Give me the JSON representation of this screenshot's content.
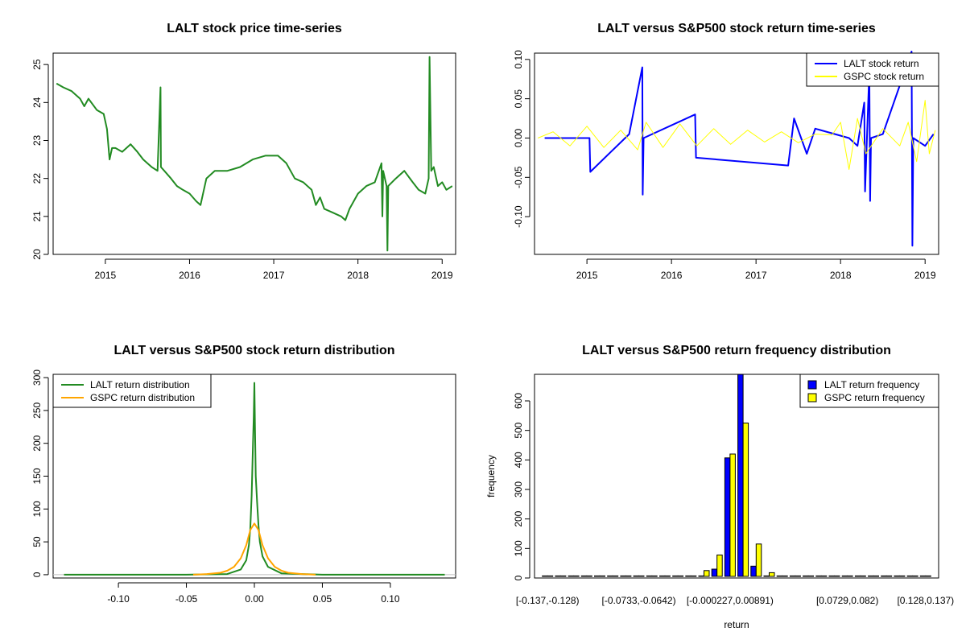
{
  "chart_data": [
    {
      "id": "price",
      "type": "line",
      "title": "LALT stock price time-series",
      "xlabel": "",
      "ylabel": "",
      "xlim": [
        2014.38,
        2019.16
      ],
      "ylim": [
        20.0,
        25.3
      ],
      "x_ticks": [
        2015,
        2016,
        2017,
        2018,
        2019
      ],
      "x_tick_labels": [
        "2015",
        "2016",
        "2017",
        "2018",
        "2019"
      ],
      "y_ticks": [
        20,
        21,
        22,
        23,
        24,
        25
      ],
      "y_tick_labels": [
        "20",
        "21",
        "22",
        "23",
        "24",
        "25"
      ],
      "series": [
        {
          "color": "#228B22",
          "x": [
            2014.42,
            2014.5,
            2014.6,
            2014.7,
            2014.75,
            2014.8,
            2014.9,
            2014.98,
            2015.02,
            2015.05,
            2015.08,
            2015.12,
            2015.2,
            2015.3,
            2015.38,
            2015.45,
            2015.55,
            2015.62,
            2015.655,
            2015.66,
            2015.7,
            2015.78,
            2015.85,
            2015.92,
            2016.0,
            2016.08,
            2016.13,
            2016.2,
            2016.3,
            2016.45,
            2016.6,
            2016.75,
            2016.9,
            2017.05,
            2017.15,
            2017.25,
            2017.35,
            2017.45,
            2017.5,
            2017.55,
            2017.6,
            2017.7,
            2017.8,
            2017.85,
            2017.9,
            2018.0,
            2018.1,
            2018.2,
            2018.28,
            2018.29,
            2018.3,
            2018.34,
            2018.35,
            2018.36,
            2018.45,
            2018.55,
            2018.65,
            2018.72,
            2018.8,
            2018.84,
            2018.85,
            2018.87,
            2018.9,
            2018.95,
            2019.0,
            2019.05,
            2019.12
          ],
          "y": [
            24.5,
            24.4,
            24.3,
            24.1,
            23.9,
            24.1,
            23.8,
            23.7,
            23.3,
            22.5,
            22.8,
            22.8,
            22.7,
            22.9,
            22.7,
            22.5,
            22.3,
            22.2,
            24.4,
            22.3,
            22.2,
            22.0,
            21.8,
            21.7,
            21.6,
            21.4,
            21.3,
            22.0,
            22.2,
            22.2,
            22.3,
            22.5,
            22.6,
            22.6,
            22.4,
            22.0,
            21.9,
            21.7,
            21.3,
            21.5,
            21.2,
            21.1,
            21.0,
            20.9,
            21.2,
            21.6,
            21.8,
            21.9,
            22.4,
            21.0,
            22.2,
            21.8,
            20.1,
            21.8,
            22.0,
            22.2,
            21.9,
            21.7,
            21.6,
            22.0,
            25.2,
            22.2,
            22.3,
            21.8,
            21.9,
            21.7,
            21.8
          ]
        }
      ]
    },
    {
      "id": "returns",
      "type": "line",
      "title": "LALT versus S&P500 stock return time-series",
      "xlabel": "",
      "ylabel": "",
      "xlim": [
        2014.38,
        2019.16
      ],
      "ylim": [
        -0.148,
        0.108
      ],
      "x_ticks": [
        2015,
        2016,
        2017,
        2018,
        2019
      ],
      "x_tick_labels": [
        "2015",
        "2016",
        "2017",
        "2018",
        "2019"
      ],
      "y_ticks": [
        -0.1,
        -0.05,
        0.0,
        0.05,
        0.1
      ],
      "y_tick_labels": [
        "-0.10",
        "-0.05",
        "0.00",
        "0.05",
        "0.10"
      ],
      "legend": {
        "position": "top-right"
      },
      "series": [
        {
          "name": "LALT stock return",
          "color": "#0000FF",
          "x": [
            2014.5,
            2015.03,
            2015.04,
            2015.5,
            2015.655,
            2015.66,
            2015.67,
            2016.28,
            2016.29,
            2017.38,
            2017.45,
            2017.6,
            2017.7,
            2018.1,
            2018.2,
            2018.28,
            2018.29,
            2018.34,
            2018.35,
            2018.36,
            2018.5,
            2018.84,
            2018.85,
            2018.86,
            2019.0,
            2019.1
          ],
          "y": [
            0.0,
            0.0,
            -0.043,
            0.005,
            0.09,
            -0.072,
            0.0,
            0.03,
            -0.025,
            -0.035,
            0.025,
            -0.02,
            0.012,
            0.0,
            -0.01,
            0.045,
            -0.068,
            0.085,
            -0.08,
            0.0,
            0.005,
            0.11,
            -0.137,
            0.0,
            -0.01,
            0.005
          ]
        },
        {
          "name": "GSPC stock return",
          "color": "#FFFF00",
          "x": [
            2014.42,
            2014.6,
            2014.8,
            2015.0,
            2015.2,
            2015.4,
            2015.6,
            2015.7,
            2015.9,
            2016.1,
            2016.3,
            2016.5,
            2016.7,
            2016.9,
            2017.1,
            2017.3,
            2017.5,
            2017.7,
            2017.9,
            2018.0,
            2018.1,
            2018.2,
            2018.3,
            2018.5,
            2018.7,
            2018.8,
            2018.9,
            2019.0,
            2019.05,
            2019.12
          ],
          "y": [
            0.0,
            0.008,
            -0.01,
            0.015,
            -0.012,
            0.01,
            -0.015,
            0.02,
            -0.012,
            0.018,
            -0.01,
            0.012,
            -0.008,
            0.01,
            -0.005,
            0.008,
            -0.006,
            0.005,
            0.004,
            0.02,
            -0.04,
            0.025,
            -0.02,
            0.012,
            -0.01,
            0.02,
            -0.03,
            0.048,
            -0.02,
            0.01
          ]
        }
      ]
    },
    {
      "id": "density",
      "type": "line",
      "title": "LALT versus S&P500 stock return distribution",
      "xlabel": "",
      "ylabel": "",
      "xlim": [
        -0.148,
        0.148
      ],
      "ylim": [
        -5,
        305
      ],
      "x_ticks": [
        -0.1,
        -0.05,
        0.0,
        0.05,
        0.1
      ],
      "x_tick_labels": [
        "-0.10",
        "-0.05",
        "0.00",
        "0.05",
        "0.10"
      ],
      "y_ticks": [
        0,
        50,
        100,
        150,
        200,
        250,
        300
      ],
      "y_tick_labels": [
        "0",
        "50",
        "100",
        "150",
        "200",
        "250",
        "300"
      ],
      "legend": {
        "position": "top-left"
      },
      "series": [
        {
          "name": "LALT return distribution",
          "color": "#228B22",
          "x": [
            -0.14,
            -0.05,
            -0.02,
            -0.01,
            -0.006,
            -0.004,
            -0.003,
            -0.002,
            -0.001,
            -0.0005,
            0.0,
            0.0005,
            0.001,
            0.002,
            0.003,
            0.004,
            0.006,
            0.01,
            0.02,
            0.05,
            0.09,
            0.14
          ],
          "y": [
            0,
            0,
            1,
            8,
            22,
            45,
            70,
            120,
            200,
            240,
            292,
            220,
            150,
            110,
            75,
            50,
            28,
            12,
            2,
            0,
            0,
            0
          ]
        },
        {
          "name": "GSPC return distribution",
          "color": "#FFA500",
          "x": [
            -0.045,
            -0.035,
            -0.025,
            -0.02,
            -0.015,
            -0.01,
            -0.006,
            -0.003,
            0.0,
            0.003,
            0.006,
            0.01,
            0.015,
            0.02,
            0.025,
            0.035,
            0.045
          ],
          "y": [
            0,
            1,
            3,
            6,
            12,
            25,
            45,
            68,
            78,
            68,
            45,
            25,
            12,
            6,
            3,
            1,
            0
          ]
        }
      ]
    },
    {
      "id": "frequency",
      "type": "bar",
      "title": "LALT versus S&P500 return frequency distribution",
      "xlabel": "return",
      "ylabel": "frequency",
      "ylim": [
        0,
        690
      ],
      "y_ticks": [
        0,
        100,
        200,
        300,
        400,
        500,
        600
      ],
      "y_tick_labels": [
        "0",
        "100",
        "200",
        "300",
        "400",
        "500",
        "600"
      ],
      "category_count": 30,
      "category_tick_positions": [
        0,
        7,
        14,
        23,
        29
      ],
      "category_tick_labels": [
        "[-0.137,-0.128)",
        "[-0.0733,-0.0642)",
        "[-0.000227,0.00891)",
        "[0.0729,0.082)",
        "[0.128,0.137)"
      ],
      "legend": {
        "position": "top-right"
      },
      "series": [
        {
          "name": "LALT return frequency",
          "color": "#0000FF",
          "values": [
            1,
            0,
            0,
            0,
            0,
            0,
            1,
            0,
            0,
            0,
            1,
            1,
            3,
            30,
            407,
            700,
            40,
            5,
            2,
            1,
            0,
            0,
            0,
            0,
            0,
            1,
            0,
            0,
            0,
            1
          ]
        },
        {
          "name": "GSPC return frequency",
          "color": "#FFFF00",
          "values": [
            0,
            0,
            0,
            0,
            0,
            0,
            0,
            0,
            0,
            0,
            0,
            0,
            25,
            78,
            420,
            525,
            115,
            18,
            2,
            0,
            0,
            0,
            0,
            0,
            0,
            0,
            0,
            0,
            0,
            0
          ]
        }
      ]
    }
  ]
}
